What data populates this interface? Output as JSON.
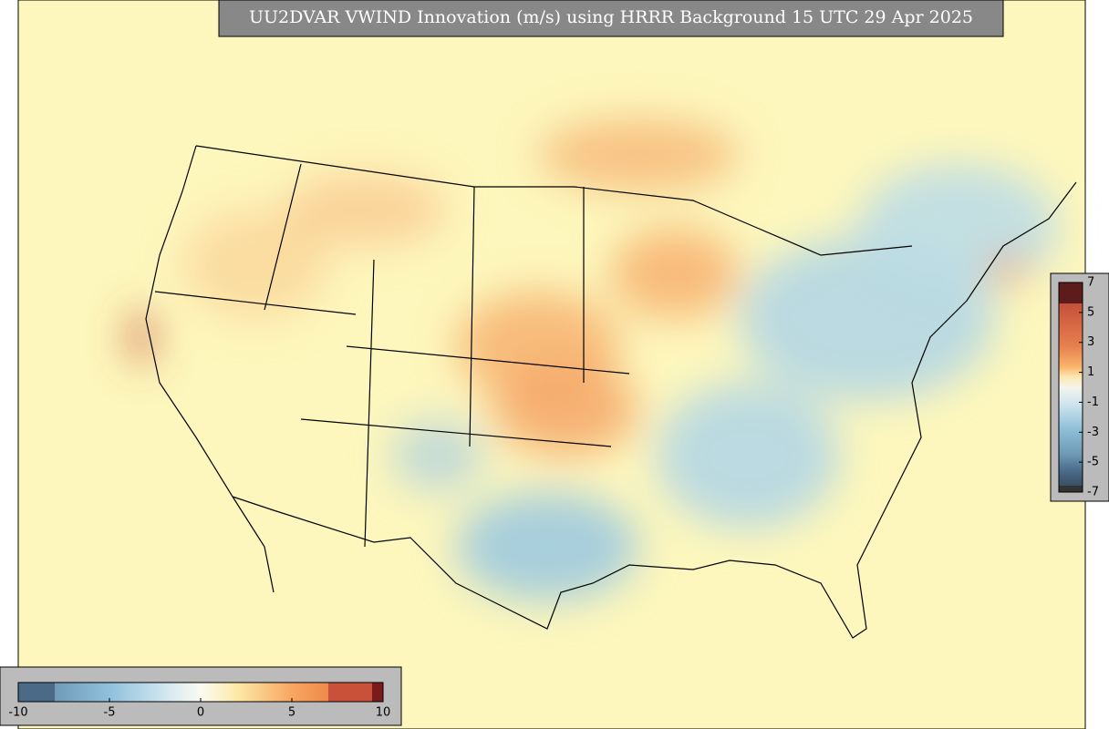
{
  "title": "UU2DVAR VWIND Innovation (m/s) using HRRR Background 15 UTC 29 Apr 2025",
  "bottom_colorbar": {
    "ticks": [
      -10,
      -5,
      0,
      5,
      10
    ]
  },
  "side_colorbar": {
    "ticks": [
      7,
      5,
      3,
      1,
      -1,
      -3,
      -5,
      -7
    ]
  }
}
